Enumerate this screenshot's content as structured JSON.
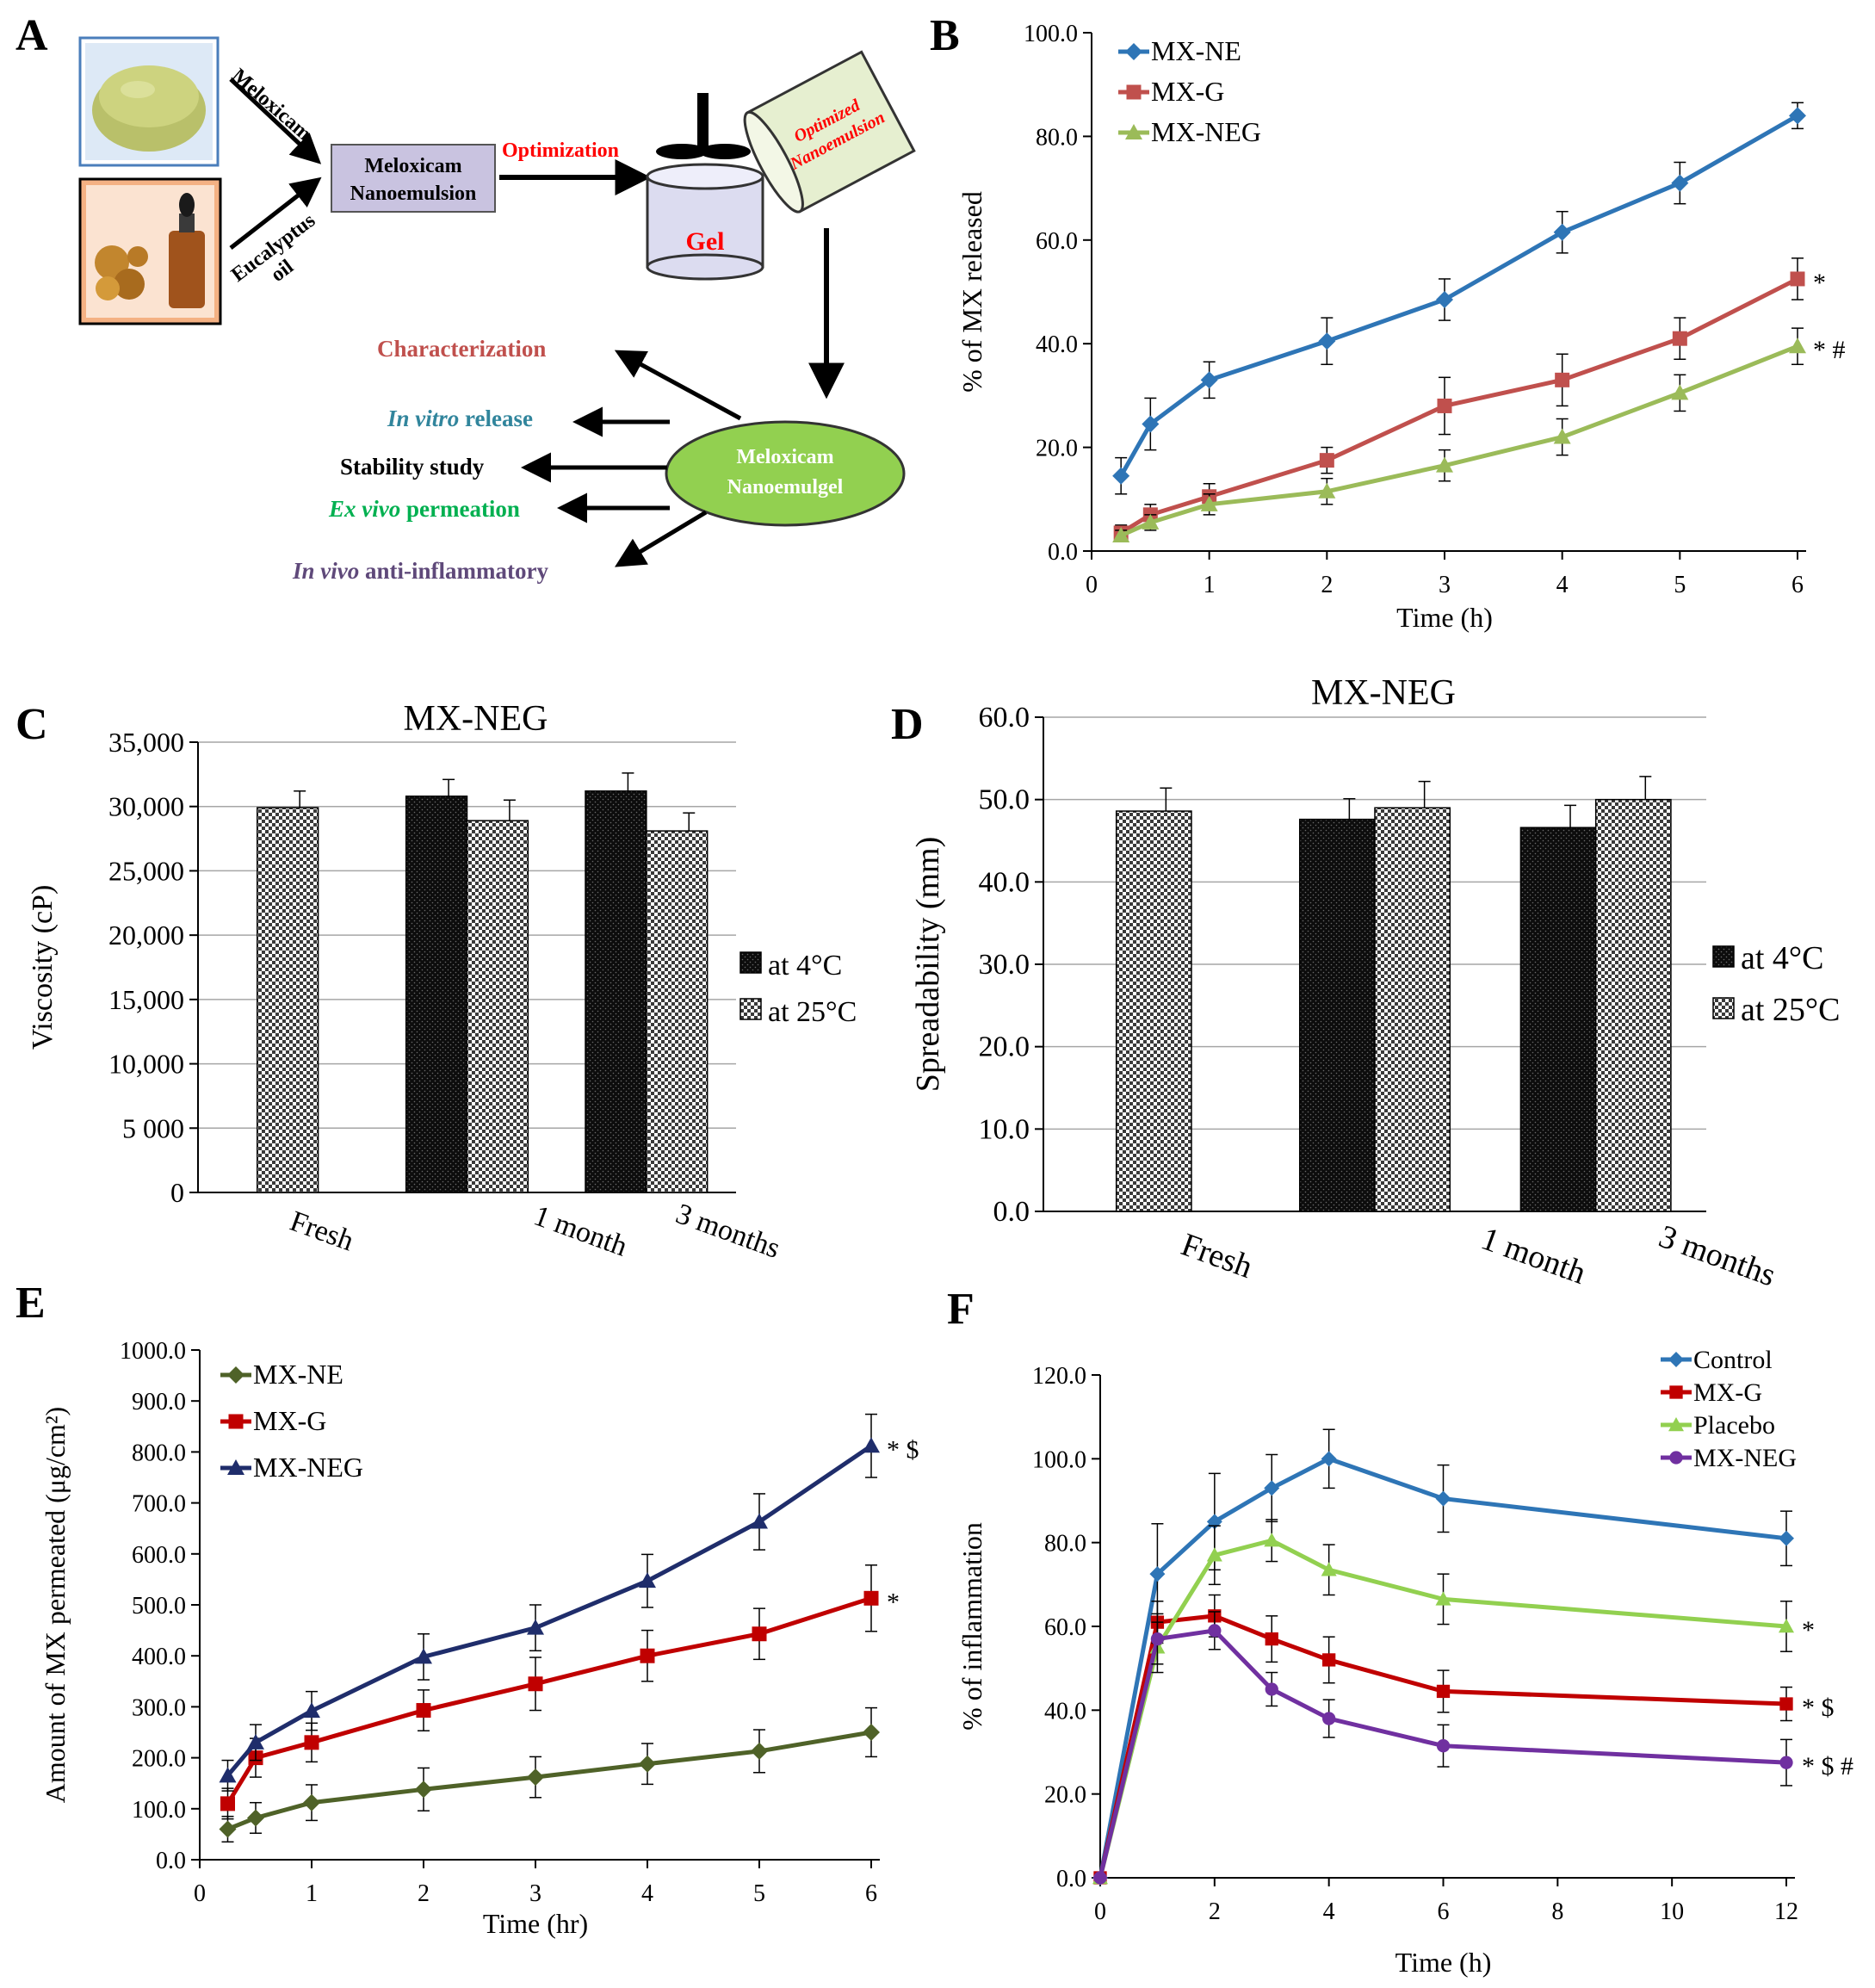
{
  "panel_letters": {
    "a": "A",
    "b": "B",
    "c": "C",
    "d": "D",
    "e": "E",
    "f": "F"
  },
  "colors": {
    "blue": "#2e75b6",
    "red": "#c0504d",
    "green": "#9bbb59",
    "purple": "#8064a2",
    "navy": "#1f2d6b",
    "darkred": "#c00000",
    "olive": "#4f6228",
    "node_fill": "#c9c3e0",
    "gel_fill": "#dcdcf0",
    "beaker_fill": "#e6efd0",
    "ellipse_fill": "#92d050",
    "powder_bg": "#ffffff",
    "oil_bg": "#f8cbad"
  },
  "diagram": {
    "arrow_meloxicam": "Meloxicam",
    "arrow_eucalyptus_1": "Eucalyptus",
    "arrow_eucalyptus_2": "oil",
    "nanoemulsion_1": "Meloxicam",
    "nanoemulsion_2": "Nanoemulsion",
    "optimization": "Optimization",
    "gel": "Gel",
    "optimized_1": "Optimized",
    "optimized_2": "Nanoemulsion",
    "ellipse_1": "Meloxicam",
    "ellipse_2": "Nanoemulgel",
    "characterization": "Characterization",
    "invitro_italic": "In vitro",
    "invitro_rest": " release",
    "stability": "Stability study",
    "exvivo_italic": "Ex vivo",
    "exvivo_rest": " permeation",
    "invivo_italic": "In vivo",
    "invivo_rest": " anti-inflammatory"
  },
  "chart_data": [
    {
      "id": "B",
      "type": "line",
      "title": "",
      "xlabel": "Time (h)",
      "ylabel": "% of MX released",
      "xlim": [
        0,
        6
      ],
      "ylim": [
        0,
        100
      ],
      "xticks": [
        0,
        1,
        2,
        3,
        4,
        5,
        6
      ],
      "yticks": [
        0,
        20,
        40,
        60,
        80,
        100
      ],
      "ytick_labels": [
        "0.0",
        "20.0",
        "40.0",
        "60.0",
        "80.0",
        "100.0"
      ],
      "legend_position": "top-left",
      "series": [
        {
          "name": "MX-NE",
          "color": "#2e75b6",
          "marker": "diamond",
          "x": [
            0.25,
            0.5,
            1,
            2,
            3,
            4,
            5,
            6
          ],
          "y": [
            14.5,
            24.5,
            33.0,
            40.5,
            48.5,
            61.5,
            71.0,
            84.0
          ],
          "err": [
            3.5,
            5.0,
            3.5,
            4.5,
            4.0,
            4.0,
            4.0,
            2.5
          ],
          "annotation": ""
        },
        {
          "name": "MX-G",
          "color": "#c0504d",
          "marker": "square",
          "x": [
            0.25,
            0.5,
            1,
            2,
            3,
            4,
            5,
            6
          ],
          "y": [
            3.5,
            7.0,
            10.5,
            17.5,
            28.0,
            33.0,
            41.0,
            52.5
          ],
          "err": [
            1.5,
            2.0,
            2.5,
            2.5,
            5.5,
            5.0,
            4.0,
            4.0
          ],
          "annotation": "*"
        },
        {
          "name": "MX-NEG",
          "color": "#9bbb59",
          "marker": "triangle",
          "x": [
            0.25,
            0.5,
            1,
            2,
            3,
            4,
            5,
            6
          ],
          "y": [
            3.0,
            5.5,
            9.0,
            11.5,
            16.5,
            22.0,
            30.5,
            39.5
          ],
          "err": [
            1.0,
            1.5,
            2.0,
            2.5,
            3.0,
            3.5,
            3.5,
            3.5
          ],
          "annotation": "*  #"
        }
      ]
    },
    {
      "id": "C",
      "type": "bar",
      "title": "MX-NEG",
      "xlabel": "",
      "ylabel": "Viscosity (cP)",
      "ylim": [
        0,
        35000
      ],
      "yticks": [
        0,
        5000,
        10000,
        15000,
        20000,
        25000,
        30000,
        35000
      ],
      "ytick_labels": [
        "0",
        "5 000",
        "10,000",
        "15,000",
        "20,000",
        "25,000",
        "30,000",
        "35,000"
      ],
      "categories": [
        "Fresh",
        "1 month",
        "3 months"
      ],
      "legend_position": "right",
      "series": [
        {
          "name": "at 4°C",
          "pattern": "dark",
          "values": [
            null,
            30800,
            31200
          ],
          "err": [
            null,
            1300,
            1400
          ]
        },
        {
          "name": "at 25°C",
          "pattern": "check",
          "values": [
            29900,
            28900,
            28100
          ],
          "err": [
            1300,
            1600,
            1400
          ]
        }
      ]
    },
    {
      "id": "D",
      "type": "bar",
      "title": "MX-NEG",
      "xlabel": "",
      "ylabel": "Spreadability (mm)",
      "ylim": [
        0,
        60
      ],
      "yticks": [
        0,
        10,
        20,
        30,
        40,
        50,
        60
      ],
      "ytick_labels": [
        "0.0",
        "10.0",
        "20.0",
        "30.0",
        "40.0",
        "50.0",
        "60.0"
      ],
      "categories": [
        "Fresh",
        "1 month",
        "3 months"
      ],
      "legend_position": "right",
      "series": [
        {
          "name": "at 4°C",
          "pattern": "dark",
          "values": [
            null,
            47.6,
            46.6
          ],
          "err": [
            null,
            2.5,
            2.7
          ]
        },
        {
          "name": "at 25°C",
          "pattern": "check",
          "values": [
            48.6,
            49.0,
            50.0
          ],
          "err": [
            2.8,
            3.2,
            2.8
          ]
        }
      ]
    },
    {
      "id": "E",
      "type": "line",
      "title": "",
      "xlabel": "Time (hr)",
      "ylabel": "Amount of MX permeated (μg/cm²)",
      "xlim": [
        0,
        6
      ],
      "ylim": [
        0,
        1000
      ],
      "xticks": [
        0,
        1,
        2,
        3,
        4,
        5,
        6
      ],
      "yticks": [
        0,
        100,
        200,
        300,
        400,
        500,
        600,
        700,
        800,
        900,
        1000
      ],
      "ytick_labels": [
        "0.0",
        "100.0",
        "200.0",
        "300.0",
        "400.0",
        "500.0",
        "600.0",
        "700.0",
        "800.0",
        "900.0",
        "1000.0"
      ],
      "legend_position": "top-left",
      "series": [
        {
          "name": "MX-NE",
          "color": "#4f6228",
          "marker": "diamond",
          "x": [
            0.25,
            0.5,
            1,
            2,
            3,
            4,
            5,
            6
          ],
          "y": [
            60,
            82,
            112,
            138,
            162,
            188,
            213,
            250
          ],
          "err": [
            25,
            30,
            35,
            42,
            40,
            40,
            42,
            48
          ],
          "annotation": ""
        },
        {
          "name": "MX-G",
          "color": "#c00000",
          "marker": "square",
          "x": [
            0.25,
            0.5,
            1,
            2,
            3,
            4,
            5,
            6
          ],
          "y": [
            110,
            200,
            230,
            293,
            345,
            400,
            443,
            513
          ],
          "err": [
            30,
            38,
            38,
            40,
            52,
            50,
            50,
            65
          ],
          "annotation": "*"
        },
        {
          "name": "MX-NEG",
          "color": "#1f2d6b",
          "marker": "triangle",
          "x": [
            0.25,
            0.5,
            1,
            2,
            3,
            4,
            5,
            6
          ],
          "y": [
            165,
            230,
            292,
            398,
            455,
            547,
            663,
            812
          ],
          "err": [
            30,
            35,
            38,
            45,
            45,
            52,
            55,
            62
          ],
          "annotation": "*  $"
        }
      ]
    },
    {
      "id": "F",
      "type": "line",
      "title": "",
      "xlabel": "Time (h)",
      "ylabel": "% of inflammation",
      "xlim": [
        0,
        12
      ],
      "ylim": [
        0,
        120
      ],
      "xticks": [
        0,
        2,
        4,
        6,
        8,
        10,
        12
      ],
      "yticks": [
        0,
        20,
        40,
        60,
        80,
        100,
        120
      ],
      "ytick_labels": [
        "0.0",
        "20.0",
        "40.0",
        "60.0",
        "80.0",
        "100.0",
        "120.0"
      ],
      "legend_position": "top-right",
      "series": [
        {
          "name": "Control",
          "color": "#2e75b6",
          "marker": "diamond",
          "x": [
            0,
            1,
            2,
            3,
            4,
            6,
            12
          ],
          "y": [
            0,
            72.5,
            85.0,
            93.0,
            100.0,
            90.5,
            81.0
          ],
          "err": [
            0,
            12,
            11.5,
            8,
            7,
            8,
            6.5
          ],
          "annotation": ""
        },
        {
          "name": "MX-G",
          "color": "#c00000",
          "marker": "square",
          "x": [
            0,
            1,
            2,
            3,
            4,
            6,
            12
          ],
          "y": [
            0,
            61.0,
            62.5,
            57.0,
            52.0,
            44.5,
            41.5
          ],
          "err": [
            0,
            5,
            5,
            5.5,
            5.5,
            5,
            4
          ],
          "annotation": "* $"
        },
        {
          "name": "Placebo",
          "color": "#92d050",
          "marker": "triangle",
          "x": [
            0,
            1,
            2,
            3,
            4,
            6,
            12
          ],
          "y": [
            0,
            55.0,
            77.0,
            80.5,
            73.5,
            66.5,
            60.0
          ],
          "err": [
            0,
            6,
            7,
            5,
            6,
            6,
            6
          ],
          "annotation": "*"
        },
        {
          "name": "MX-NEG",
          "color": "#7030a0",
          "marker": "circle",
          "x": [
            0,
            1,
            2,
            3,
            4,
            6,
            12
          ],
          "y": [
            0,
            57.0,
            59.0,
            45.0,
            38.0,
            31.5,
            27.5
          ],
          "err": [
            0,
            6,
            4.5,
            4,
            4.5,
            5,
            5.5
          ],
          "annotation": "* $ #"
        }
      ]
    }
  ]
}
